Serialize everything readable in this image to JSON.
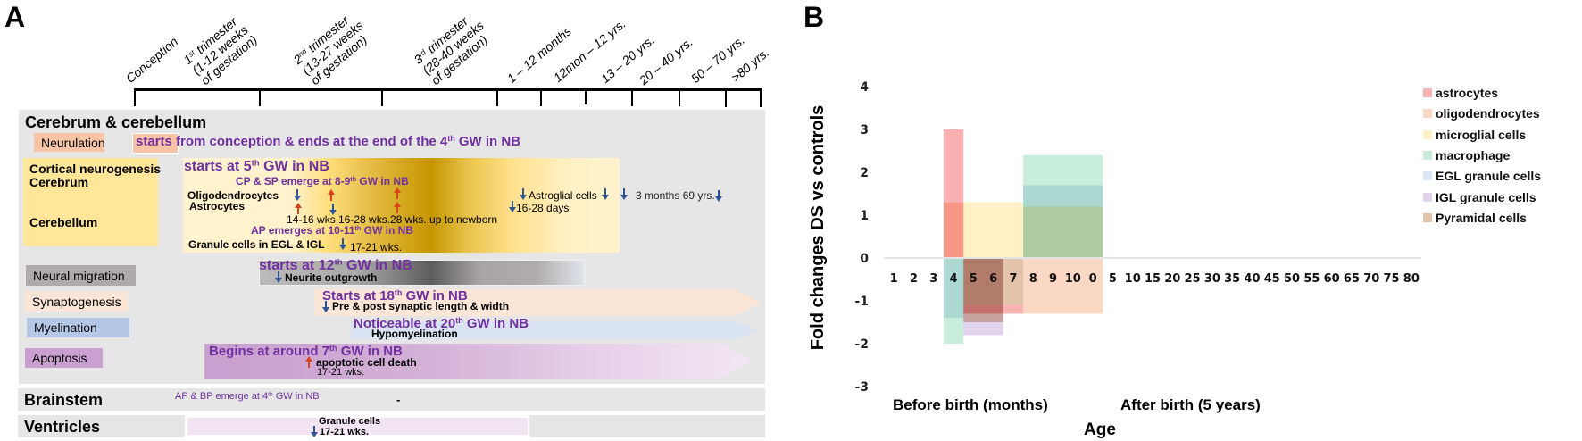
{
  "panel_a": {
    "label": "A",
    "timeline": {
      "conception": "Conception",
      "t1": {
        "sup_base": "1",
        "sup": "st",
        "rest": "  trimester",
        "line2": "(1-12 weeks",
        "line3": "of gestation)"
      },
      "t2": {
        "sup_base": "2",
        "sup": "nd",
        "rest": " trimester",
        "line2": "(13-27 weeks",
        "line3": "of gestation)"
      },
      "t3": {
        "sup_base": "3",
        "sup": "rd",
        "rest": " trimester",
        "line2": "(28-40 weeks",
        "line3": "of gestation)"
      },
      "p1": "1 – 12 months",
      "p2": "12mon – 12 yrs.",
      "p3": "13 – 20 yrs.",
      "p4": "20 – 40 yrs.",
      "p5": "50 – 70 yrs.",
      "p6": ">80 yrs."
    },
    "cerebrum": {
      "title": "Cerebrum & cerebellum",
      "neurulation": {
        "label": "Neurulation",
        "note_pre": "starts from conception & ends at the end of the 4",
        "note_sup": "th",
        "note_post": " GW in NB"
      },
      "neurogenesis": {
        "label1": "Cortical neurogenesis",
        "label2": "Cerebrum",
        "label3": "Cerebellum",
        "start_pre": "starts at 5",
        "start_sup": "th",
        "start_post": " GW in NB",
        "cp_pre": "CP & SP emerge at 8-9",
        "cp_sup": "th",
        "cp_post": " GW in NB",
        "oligo": "Oligodendrocytes",
        "astro": "Astrocytes",
        "w1": "14-16 wks.",
        "w2": "16-28 wks.",
        "w3": "28 wks. up to newborn",
        "astroglial": "Astroglial cells",
        "days": "16-28 days",
        "months": "3 months 69 yrs.",
        "ap_pre": "AP emerges at 10-11",
        "ap_sup": "th",
        "ap_post": " GW in NB",
        "granule": "Granule cells in EGL & IGL",
        "granule_wks": "17-21 wks."
      },
      "migration": {
        "label": "Neural migration",
        "start_pre": "starts at  12",
        "start_sup": "th",
        "start_post": " GW in NB",
        "note": "Neurite outgrowth"
      },
      "synaptogenesis": {
        "label": "Synaptogenesis",
        "start_pre": "Starts at 18",
        "start_sup": "th",
        "start_post": " GW in NB",
        "note": "Pre & post synaptic length & width"
      },
      "myelination": {
        "label": "Myelination",
        "start_pre": "Noticeable at 20",
        "start_sup": "th",
        "start_post": " GW in NB",
        "note": "Hypomyelination"
      },
      "apoptosis": {
        "label": "Apoptosis",
        "start_pre": "Begins at around 7",
        "start_sup": "th",
        "start_post": " GW in NB",
        "note": "apoptotic cell death",
        "wks": "17-21 wks."
      }
    },
    "brainstem": {
      "label": "Brainstem",
      "note_pre": "AP & BP emerge at 4",
      "note_sup": "th",
      "note_post": " GW in NB",
      "dash": "-"
    },
    "ventricles": {
      "label": "Ventricles",
      "note": "Granule cells",
      "wks": "17-21 wks."
    },
    "colors": {
      "up_arrow": "#d9441c",
      "down_arrow": "#2f5597",
      "highlight_text": "#7030a0"
    }
  },
  "panel_b": {
    "label": "B"
  },
  "chart_data": {
    "type": "bar",
    "subtype": "floating-range-overlap",
    "ylabel": "Fold changes DS vs controls",
    "xlabel": "Age",
    "x_group_labels": [
      "Before birth (months)",
      "After birth (5 years)"
    ],
    "categories": [
      "1",
      "2",
      "3",
      "4",
      "5",
      "6",
      "7",
      "8",
      "9",
      "10",
      "0",
      "5",
      "10",
      "15",
      "20",
      "25",
      "30",
      "35",
      "40",
      "45",
      "50",
      "55",
      "60",
      "65",
      "70",
      "75",
      "80"
    ],
    "ylim": [
      -3,
      4
    ],
    "yticks": [
      4,
      3,
      2,
      1,
      0,
      -1,
      -2,
      -3
    ],
    "grid": false,
    "legend_position": "right",
    "series": [
      {
        "name": "astrocytes",
        "color": "#f9b1b1",
        "bars": [
          {
            "categories": [
              "4"
            ],
            "low": 0,
            "high": 3
          },
          {
            "categories": [
              "5",
              "6",
              "7"
            ],
            "low": -1.3,
            "high": -1.1
          }
        ]
      },
      {
        "name": "oligodendrocytes",
        "color": "#fbd8c3",
        "bars": [
          {
            "categories": [
              "4"
            ],
            "low": 0,
            "high": 1.3
          },
          {
            "categories": [
              "8",
              "9",
              "10",
              "0"
            ],
            "low": -1.3,
            "high": 0
          }
        ]
      },
      {
        "name": "microglial cells",
        "color": "#fff0c6",
        "bars": [
          {
            "categories": [
              "5",
              "6",
              "7"
            ],
            "low": 0,
            "high": 1.3
          },
          {
            "categories": [
              "8",
              "9",
              "10",
              "0"
            ],
            "low": 0,
            "high": 1.2
          }
        ]
      },
      {
        "name": "macrophage",
        "color": "#c8eedb",
        "bars": [
          {
            "categories": [
              "8",
              "9",
              "10",
              "0"
            ],
            "low": 0,
            "high": 2.4
          },
          {
            "categories": [
              "4"
            ],
            "low": -2,
            "high": 0
          }
        ]
      },
      {
        "name": "EGL granule cells",
        "color": "#dce8f5",
        "bars": [
          {
            "categories": [
              "8",
              "9",
              "10",
              "0"
            ],
            "low": 0,
            "high": 1.7
          },
          {
            "categories": [
              "4"
            ],
            "low": -1.4,
            "high": 0
          }
        ]
      },
      {
        "name": "IGL granule cells",
        "color": "#e0d3ec",
        "bars": [
          {
            "categories": [
              "5",
              "6"
            ],
            "low": -1.8,
            "high": 0
          }
        ]
      },
      {
        "name": "Pyramidal cells",
        "color": "#e3c4ab",
        "bars": [
          {
            "categories": [
              "5",
              "6",
              "7"
            ],
            "low": -1.1,
            "high": 0
          },
          {
            "categories": [
              "5",
              "6"
            ],
            "low": -1.5,
            "high": 0
          }
        ]
      }
    ]
  }
}
